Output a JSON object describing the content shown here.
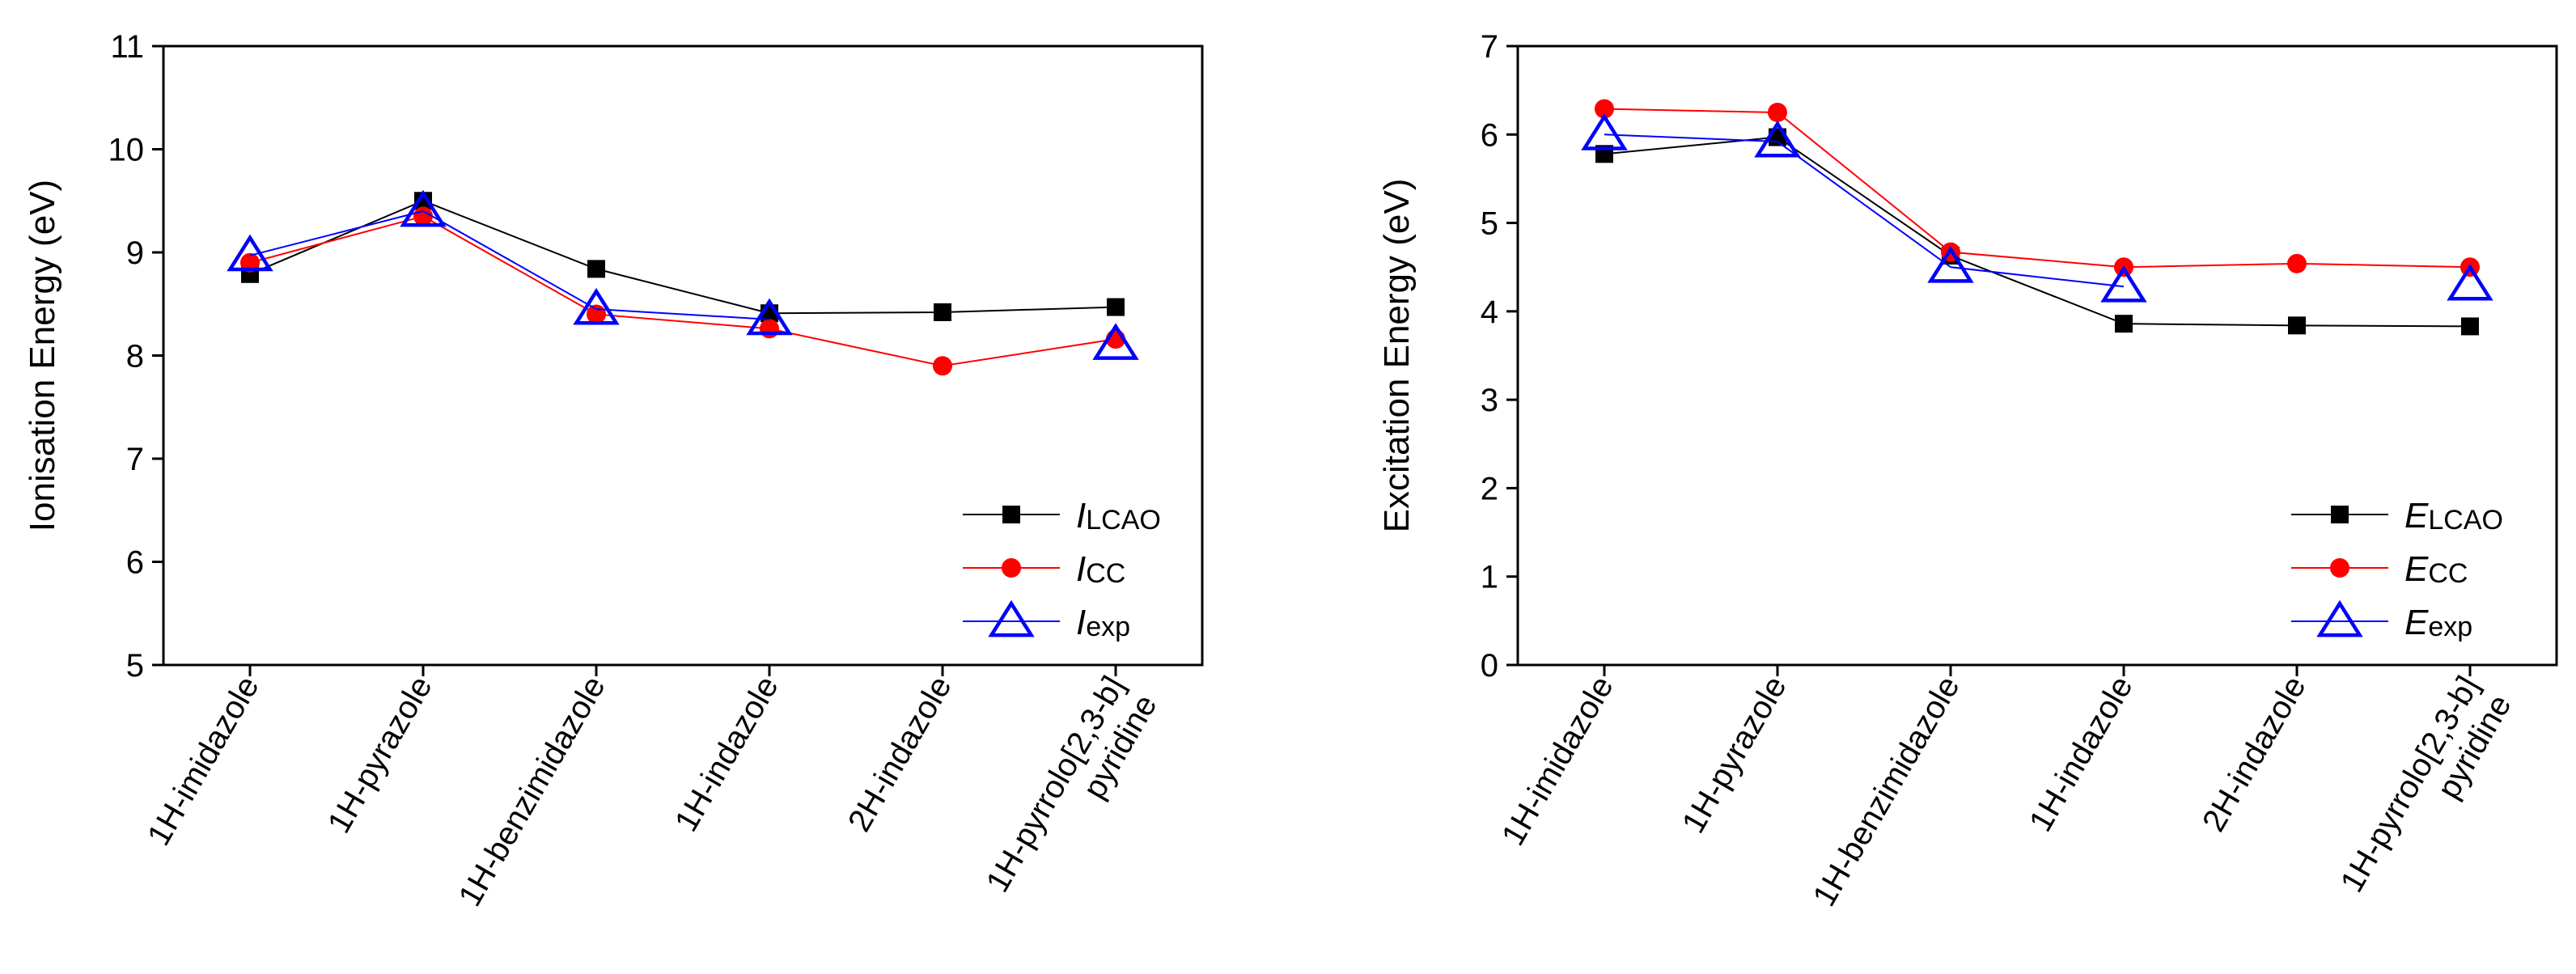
{
  "chart_data": [
    {
      "type": "line",
      "title": "",
      "xlabel": "",
      "ylabel": "Ionisation Energy (eV)",
      "ylim": [
        5,
        11
      ],
      "yticks": [
        5,
        6,
        7,
        8,
        9,
        10,
        11
      ],
      "categories": [
        [
          "1H-imidazole"
        ],
        [
          "1H-pyrazole"
        ],
        [
          "1H-benzimidazole"
        ],
        [
          "1H-indazole"
        ],
        [
          "2H-indazole"
        ],
        [
          "1H-pyrrolo[2,3-b]",
          "pyridine"
        ]
      ],
      "legend_position": "bottom-right",
      "series": [
        {
          "name": "I",
          "sub": "LCAO",
          "marker": "square",
          "color": "#000000",
          "values": [
            8.79,
            9.5,
            8.84,
            8.41,
            8.42,
            8.47
          ]
        },
        {
          "name": "I",
          "sub": "CC",
          "marker": "circle",
          "color": "#ff0000",
          "values": [
            8.9,
            9.35,
            8.4,
            8.26,
            7.9,
            8.16
          ]
        },
        {
          "name": "I",
          "sub": "exp",
          "marker": "triangle",
          "color": "#0000ff",
          "values": [
            8.97,
            9.4,
            8.45,
            8.35,
            null,
            8.11
          ]
        }
      ]
    },
    {
      "type": "line",
      "title": "",
      "xlabel": "",
      "ylabel": "Excitation Energy (eV)",
      "ylim": [
        0,
        7
      ],
      "yticks": [
        0,
        1,
        2,
        3,
        4,
        5,
        6,
        7
      ],
      "categories": [
        [
          "1H-imidazole"
        ],
        [
          "1H-pyrazole"
        ],
        [
          "1H-benzimidazole"
        ],
        [
          "1H-indazole"
        ],
        [
          "2H-indazole"
        ],
        [
          "1H-pyrrolo[2,3-b]",
          "pyridine"
        ]
      ],
      "legend_position": "bottom-right",
      "series": [
        {
          "name": "E",
          "sub": "LCAO",
          "marker": "square",
          "color": "#000000",
          "values": [
            5.78,
            5.97,
            4.63,
            3.86,
            3.84,
            3.83
          ]
        },
        {
          "name": "E",
          "sub": "CC",
          "marker": "circle",
          "color": "#ff0000",
          "values": [
            6.29,
            6.25,
            4.67,
            4.5,
            4.54,
            4.5
          ]
        },
        {
          "name": "E",
          "sub": "exp",
          "marker": "triangle",
          "color": "#0000ff",
          "values": [
            6.0,
            5.92,
            4.5,
            4.28,
            null,
            4.3
          ]
        }
      ]
    }
  ]
}
